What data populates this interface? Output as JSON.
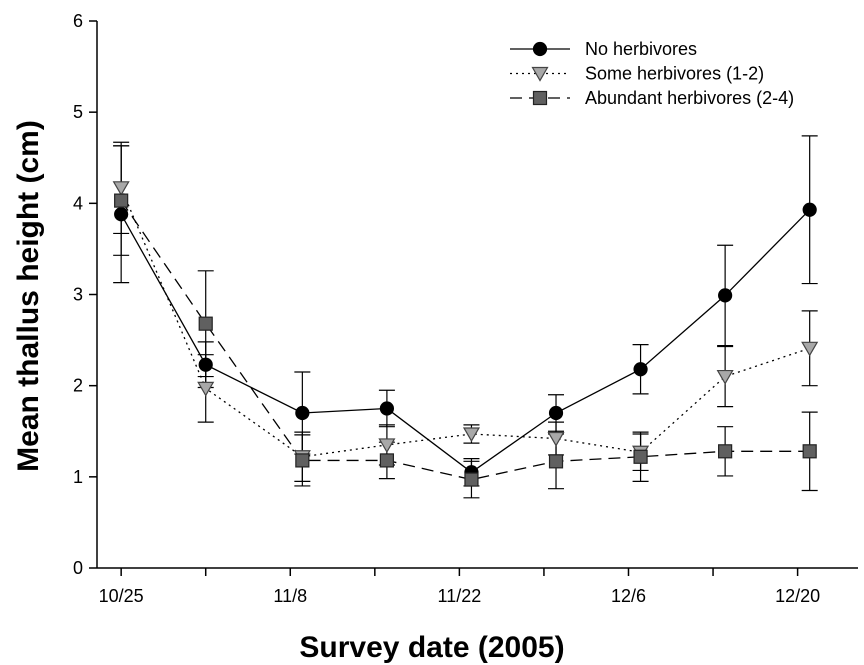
{
  "chart_data": {
    "type": "line",
    "title": "",
    "xlabel": "Survey date (2005)",
    "ylabel": "Mean thallus height (cm)",
    "xlim": [
      "2005-10-23",
      "2005-12-25"
    ],
    "ylim": [
      0,
      6
    ],
    "x_ticks": [
      "10/25",
      "11/8",
      "11/22",
      "12/6",
      "12/20"
    ],
    "x_tick_dates": [
      "2005-10-25",
      "2005-11-08",
      "2005-11-22",
      "2005-12-06",
      "2005-12-20"
    ],
    "y_ticks": [
      "0",
      "1",
      "2",
      "3",
      "4",
      "5",
      "6"
    ],
    "y_tick_values": [
      0,
      1,
      2,
      3,
      4,
      5,
      6
    ],
    "grid": false,
    "legend_position": "top-right",
    "series": [
      {
        "name": "No herbivores",
        "marker": "circle",
        "line": "solid",
        "color": "#000000",
        "points": [
          {
            "x": "2005-10-25",
            "y": 3.88,
            "err": 0.75
          },
          {
            "x": "2005-11-01",
            "y": 2.23,
            "err": 0.25
          },
          {
            "x": "2005-11-09",
            "y": 1.7,
            "err": 0.45
          },
          {
            "x": "2005-11-16",
            "y": 1.75,
            "err": 0.2
          },
          {
            "x": "2005-11-23",
            "y": 1.05,
            "err": 0.15
          },
          {
            "x": "2005-11-30",
            "y": 1.7,
            "err": 0.2
          },
          {
            "x": "2005-12-07",
            "y": 2.18,
            "err": 0.27
          },
          {
            "x": "2005-12-14",
            "y": 2.99,
            "err": 0.55
          },
          {
            "x": "2005-12-21",
            "y": 3.93,
            "err": 0.81
          }
        ]
      },
      {
        "name": "Some herbivores (1-2)",
        "marker": "triangle-down",
        "line": "dotted",
        "color": "#a8a8a8",
        "points": [
          {
            "x": "2005-10-25",
            "y": 4.17,
            "err": 0.5
          },
          {
            "x": "2005-11-01",
            "y": 1.97,
            "err": 0.37
          },
          {
            "x": "2005-11-09",
            "y": 1.22,
            "err": 0.27
          },
          {
            "x": "2005-11-16",
            "y": 1.35,
            "err": 0.22
          },
          {
            "x": "2005-11-23",
            "y": 1.47,
            "err": 0.1
          },
          {
            "x": "2005-11-30",
            "y": 1.42,
            "err": 0.18
          },
          {
            "x": "2005-12-07",
            "y": 1.27,
            "err": 0.2
          },
          {
            "x": "2005-12-14",
            "y": 2.1,
            "err": 0.33
          },
          {
            "x": "2005-12-21",
            "y": 2.41,
            "err": 0.41
          }
        ]
      },
      {
        "name": "Abundant herbivores (2-4)",
        "marker": "square",
        "line": "dashed",
        "color": "#606060",
        "points": [
          {
            "x": "2005-10-25",
            "y": 4.03,
            "err": 0.6
          },
          {
            "x": "2005-11-01",
            "y": 2.68,
            "err": 0.58
          },
          {
            "x": "2005-11-09",
            "y": 1.18,
            "err": 0.28
          },
          {
            "x": "2005-11-16",
            "y": 1.18,
            "err": 0.2
          },
          {
            "x": "2005-11-23",
            "y": 0.97,
            "err": 0.2
          },
          {
            "x": "2005-11-30",
            "y": 1.17,
            "err": 0.3
          },
          {
            "x": "2005-12-07",
            "y": 1.22,
            "err": 0.27
          },
          {
            "x": "2005-12-14",
            "y": 1.28,
            "err": 0.27
          },
          {
            "x": "2005-12-21",
            "y": 1.28,
            "err": 0.43
          }
        ]
      }
    ]
  }
}
